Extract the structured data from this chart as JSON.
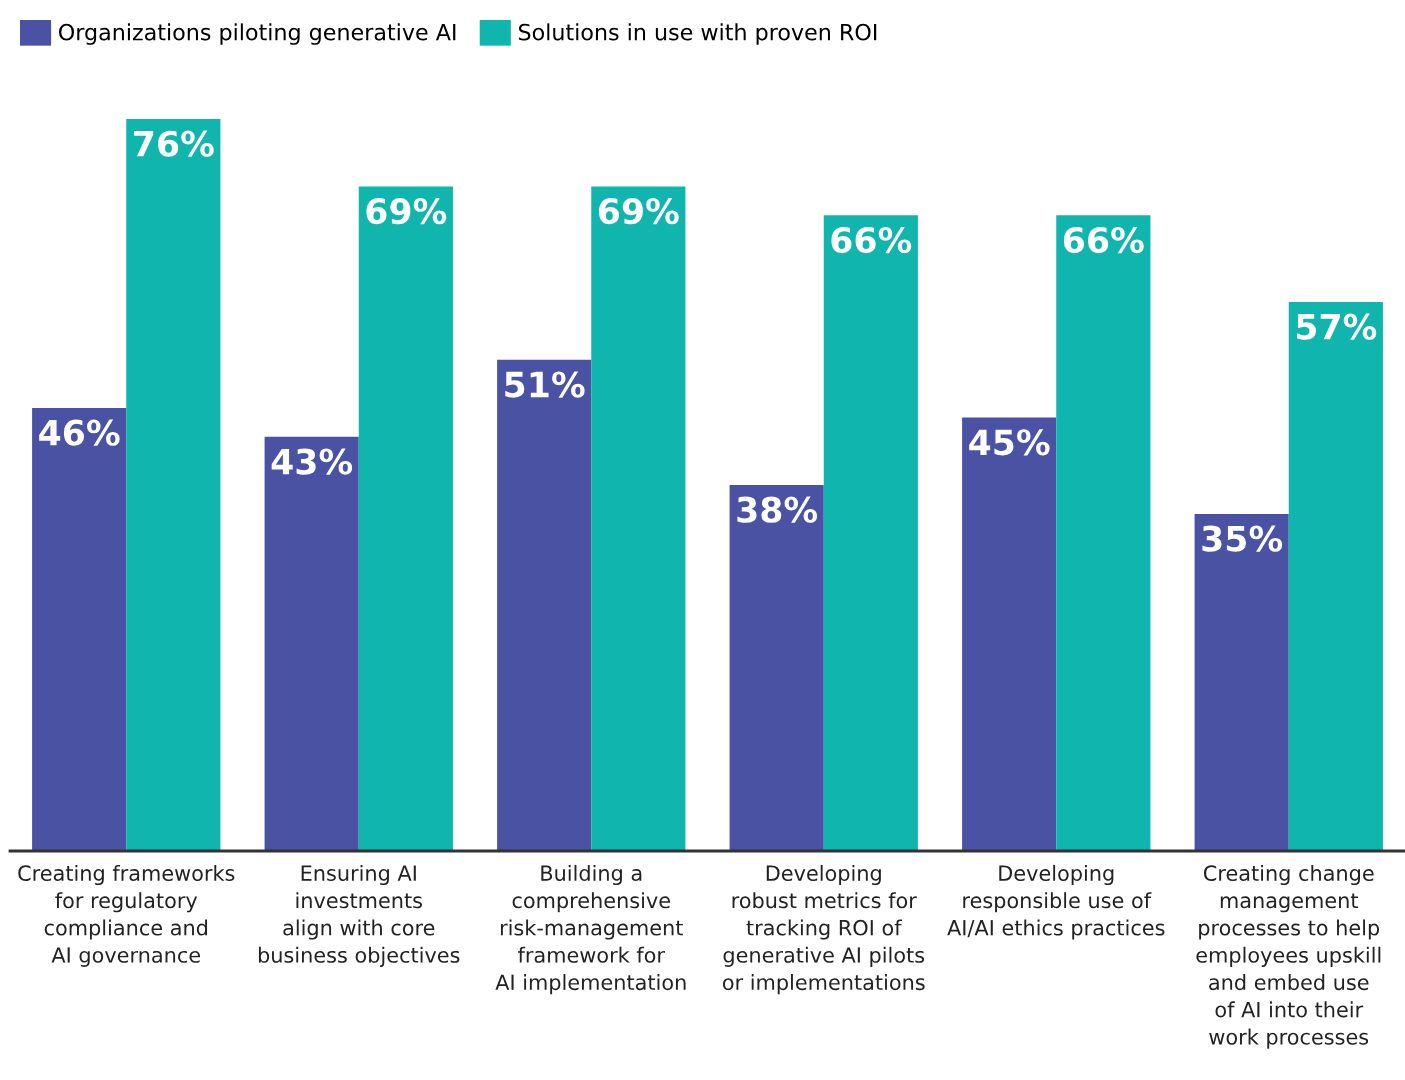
{
  "chart_data": {
    "type": "bar",
    "categories": [
      "Creating frameworks\nfor regulatory\ncompliance and\nAI governance",
      "Ensuring AI\ninvestments\nalign with core\nbusiness objectives",
      "Building a\ncomprehensive\nrisk-management\nframework for\nAI implementation",
      "Developing\nrobust metrics for\ntracking ROI of\ngenerative AI pilots\nor implementations",
      "Developing\nresponsible use of\nAI/AI ethics practices",
      "Creating change\nmanagement\nprocesses to help\nemployees upskill\nand embed use\nof AI into their\nwork processes"
    ],
    "series": [
      {
        "name": "Organizations piloting generative AI",
        "color": "#4a53a3",
        "values": [
          46,
          43,
          51,
          38,
          45,
          35
        ],
        "value_labels": [
          "46%",
          "43%",
          "51%",
          "38%",
          "45%",
          "35%"
        ]
      },
      {
        "name": "Solutions in use with proven ROI",
        "color": "#10b5ad",
        "values": [
          76,
          69,
          69,
          66,
          66,
          57
        ],
        "value_labels": [
          "76%",
          "69%",
          "69%",
          "66%",
          "66%",
          "57%"
        ]
      }
    ],
    "legend": "top left",
    "grid": false
  }
}
